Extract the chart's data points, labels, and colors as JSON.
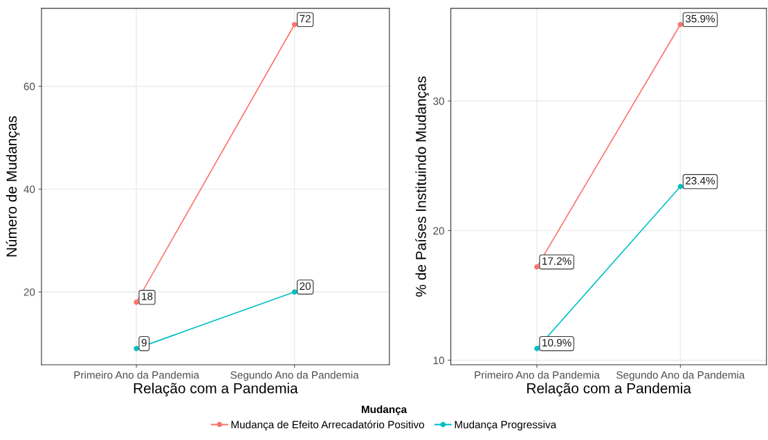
{
  "chart_data": [
    {
      "type": "line",
      "xlabel": "Relação com a Pandemia",
      "ylabel": "Número de Mudanças",
      "categories": [
        "Primeiro Ano da Pandemia",
        "Segundo Ano da Pandemia"
      ],
      "series": [
        {
          "name": "Mudança de Efeito Arrecadatório Positivo",
          "color": "#f8766d",
          "values": [
            18,
            72
          ]
        },
        {
          "name": "Mudança Progressiva",
          "color": "#00bfc4",
          "values": [
            9,
            20
          ]
        }
      ],
      "ylim": [
        5.85,
        75.15
      ],
      "yticks": [
        20,
        40,
        60
      ],
      "grid": true,
      "marker": "circle",
      "data_labels": true,
      "legend": "bottom",
      "legend_title": "Mudança"
    },
    {
      "type": "line",
      "xlabel": "Relação com a Pandemia",
      "ylabel": "% de Países Instituindo Mudanças",
      "categories": [
        "Primeiro Ano da Pandemia",
        "Segundo Ano da Pandemia"
      ],
      "series": [
        {
          "color": "#f8766d",
          "values": [
            17.2,
            35.9
          ],
          "value_labels": [
            "17.2%",
            "35.9%"
          ]
        },
        {
          "color": "#00bfc4",
          "values": [
            10.9,
            23.4
          ],
          "value_labels": [
            "10.9%",
            "23.4%"
          ]
        }
      ],
      "ylim": [
        9.65,
        37.15
      ],
      "yticks": [
        10,
        20,
        30
      ],
      "grid": true,
      "marker": "circle"
    }
  ]
}
